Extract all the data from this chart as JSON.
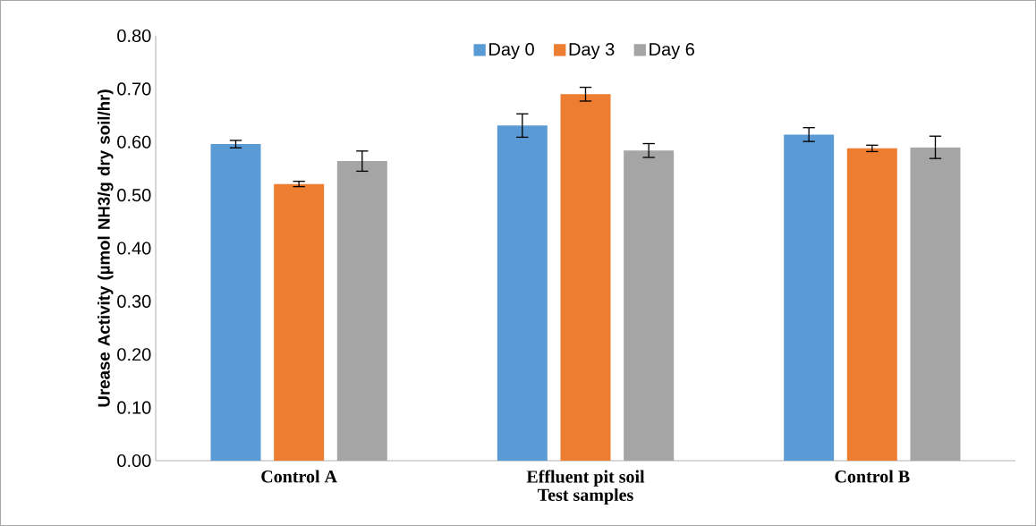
{
  "chart_data": {
    "type": "bar",
    "categories": [
      "Control A",
      "Effluent pit soil",
      "Control B"
    ],
    "xlabel": "Test samples",
    "ylabel": "Urease Activity (µmol NH3/g dry soil/hr)",
    "series": [
      {
        "name": "Day 0",
        "color": "#5b9bd5",
        "values": [
          0.596,
          0.631,
          0.614
        ],
        "errors": [
          0.007,
          0.022,
          0.013
        ]
      },
      {
        "name": "Day 3",
        "color": "#ed7d31",
        "values": [
          0.521,
          0.69,
          0.588
        ],
        "errors": [
          0.005,
          0.013,
          0.006
        ]
      },
      {
        "name": "Day 6",
        "color": "#a5a5a5",
        "values": [
          0.564,
          0.584,
          0.59
        ],
        "errors": [
          0.019,
          0.013,
          0.021
        ]
      }
    ],
    "ylim": [
      0,
      0.8
    ],
    "yticks": [
      {
        "value": 0,
        "label": "0.00"
      },
      {
        "value": 0.1,
        "label": "0.10"
      },
      {
        "value": 0.2,
        "label": "0.20"
      },
      {
        "value": 0.3,
        "label": "0.30"
      },
      {
        "value": 0.4,
        "label": "0.40"
      },
      {
        "value": 0.5,
        "label": "0.50"
      },
      {
        "value": 0.6,
        "label": "0.60"
      },
      {
        "value": 0.7,
        "label": "0.70"
      },
      {
        "value": 0.8,
        "label": "0.80"
      }
    ],
    "legend": "top"
  }
}
